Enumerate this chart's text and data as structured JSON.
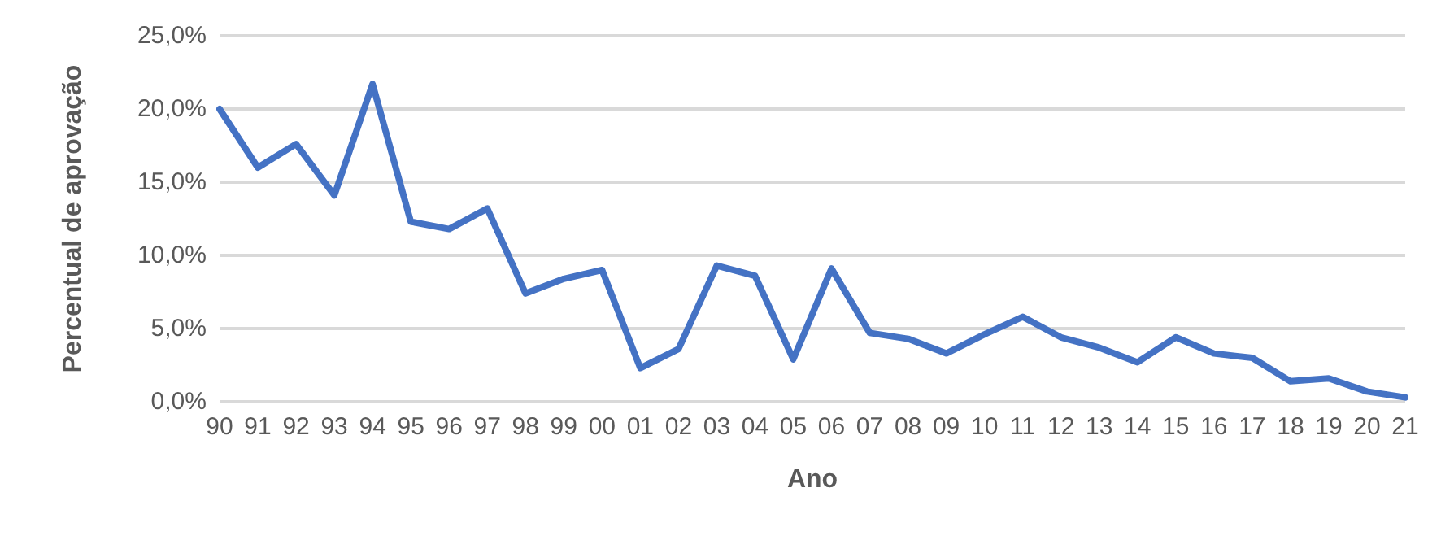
{
  "chart_data": {
    "type": "line",
    "xlabel": "Ano",
    "ylabel": "Percentual de aprovação",
    "categories": [
      "90",
      "91",
      "92",
      "93",
      "94",
      "95",
      "96",
      "97",
      "98",
      "99",
      "00",
      "01",
      "02",
      "03",
      "04",
      "05",
      "06",
      "07",
      "08",
      "09",
      "10",
      "11",
      "12",
      "13",
      "14",
      "15",
      "16",
      "17",
      "18",
      "19",
      "20",
      "21"
    ],
    "series": [
      {
        "color": "#4472c4",
        "values": [
          20.0,
          16.0,
          17.6,
          14.1,
          21.7,
          12.3,
          11.8,
          13.2,
          7.4,
          8.4,
          9.0,
          2.3,
          3.6,
          9.3,
          8.6,
          2.9,
          9.1,
          4.7,
          4.3,
          3.3,
          4.6,
          5.8,
          4.4,
          3.7,
          2.7,
          4.4,
          3.3,
          3.0,
          1.4,
          1.6,
          0.7,
          0.3
        ]
      }
    ],
    "ylim": [
      0,
      25
    ],
    "yticks": [
      {
        "value": 0,
        "label": "0,0%"
      },
      {
        "value": 5,
        "label": "5,0%"
      },
      {
        "value": 10,
        "label": "10,0%"
      },
      {
        "value": 15,
        "label": "15,0%"
      },
      {
        "value": 20,
        "label": "20,0%"
      },
      {
        "value": 25,
        "label": "25,0%"
      }
    ],
    "grid": "y",
    "marker": "none",
    "line_style": "solid"
  }
}
